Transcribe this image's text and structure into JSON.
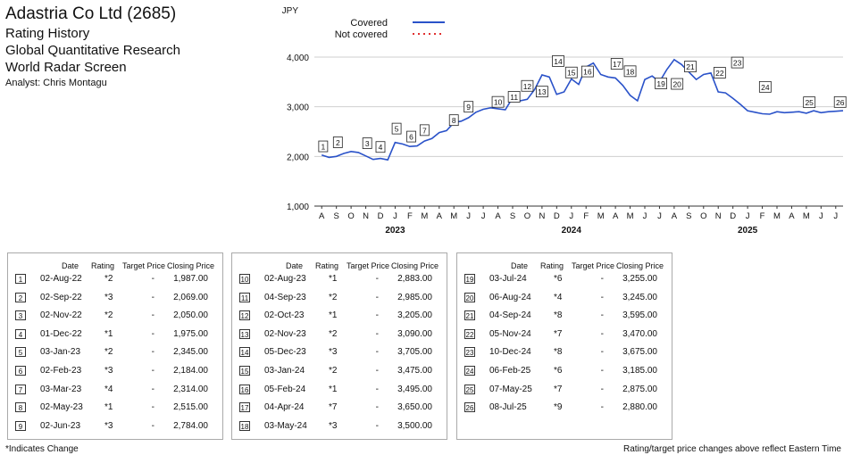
{
  "header": {
    "company": "Adastria Co Ltd (2685)",
    "line1": "Rating History",
    "line2": "Global Quantitative Research",
    "line3": "World Radar Screen",
    "analyst": "Analyst: Chris Montagu"
  },
  "chart_data": {
    "type": "line",
    "ylabel": "JPY",
    "ylim": [
      1000,
      4000
    ],
    "yticks": [
      "1,000",
      "2,000",
      "3,000",
      "4,000"
    ],
    "months": [
      "A",
      "S",
      "O",
      "N",
      "D",
      "J",
      "F",
      "M",
      "A",
      "M",
      "J",
      "J",
      "A",
      "S",
      "O",
      "N",
      "D",
      "J",
      "F",
      "M",
      "A",
      "M",
      "J",
      "J",
      "A",
      "S",
      "O",
      "N",
      "D",
      "J",
      "F",
      "M",
      "A",
      "M",
      "J",
      "J"
    ],
    "years": [
      "2023",
      "2024",
      "2025"
    ],
    "legend": [
      {
        "name": "Covered",
        "color": "#2a52c9",
        "style": "solid"
      },
      {
        "name": "Not covered",
        "color": "#e03030",
        "style": "dotted"
      }
    ],
    "series": [
      {
        "name": "Covered",
        "x": [
          0,
          0.5,
          1,
          1.5,
          2,
          2.5,
          3,
          3.5,
          4,
          4.5,
          5,
          5.5,
          6,
          6.5,
          7,
          7.5,
          8,
          8.5,
          9,
          9.5,
          10,
          10.5,
          11,
          11.5,
          12,
          12.5,
          13,
          13.5,
          14,
          14.5,
          15,
          15.5,
          16,
          16.5,
          17,
          17.5,
          18,
          18.5,
          19,
          19.5,
          20,
          20.5,
          21,
          21.5,
          22,
          22.5,
          23,
          23.5,
          24,
          24.5,
          25,
          25.5,
          26,
          26.5,
          27,
          27.5,
          28,
          28.5,
          29,
          29.5,
          30,
          30.5,
          31,
          31.5,
          32,
          32.5,
          33,
          33.5,
          34,
          34.5,
          35,
          35.5
        ],
        "y": [
          2030,
          1980,
          2000,
          2060,
          2100,
          2080,
          2010,
          1940,
          1960,
          1930,
          2280,
          2250,
          2200,
          2210,
          2310,
          2360,
          2480,
          2520,
          2680,
          2710,
          2780,
          2890,
          2950,
          2980,
          2960,
          2940,
          3180,
          3120,
          3150,
          3350,
          3640,
          3600,
          3250,
          3300,
          3560,
          3450,
          3800,
          3880,
          3650,
          3600,
          3580,
          3430,
          3230,
          3120,
          3550,
          3620,
          3500,
          3750,
          3950,
          3850,
          3700,
          3550,
          3650,
          3680,
          3300,
          3280,
          3170,
          3050,
          2920,
          2890,
          2860,
          2850,
          2900,
          2880,
          2890,
          2900,
          2870,
          2920,
          2880,
          2900,
          2910,
          2920
        ]
      }
    ],
    "markers": [
      {
        "label": "1",
        "x": 0.1,
        "y": 1987
      },
      {
        "label": "2",
        "x": 1.1,
        "y": 2069
      },
      {
        "label": "3",
        "x": 3.1,
        "y": 2050
      },
      {
        "label": "4",
        "x": 4.0,
        "y": 1975
      },
      {
        "label": "5",
        "x": 5.1,
        "y": 2345
      },
      {
        "label": "6",
        "x": 6.1,
        "y": 2184
      },
      {
        "label": "7",
        "x": 7.0,
        "y": 2314
      },
      {
        "label": "8",
        "x": 9.0,
        "y": 2515
      },
      {
        "label": "9",
        "x": 10.0,
        "y": 2784
      },
      {
        "label": "10",
        "x": 12.0,
        "y": 2883
      },
      {
        "label": "11",
        "x": 13.1,
        "y": 2985
      },
      {
        "label": "12",
        "x": 14.0,
        "y": 3205
      },
      {
        "label": "13",
        "x": 15.0,
        "y": 3090
      },
      {
        "label": "14",
        "x": 16.1,
        "y": 3705
      },
      {
        "label": "15",
        "x": 17.0,
        "y": 3475
      },
      {
        "label": "16",
        "x": 18.1,
        "y": 3495
      },
      {
        "label": "17",
        "x": 20.1,
        "y": 3650
      },
      {
        "label": "18",
        "x": 21.0,
        "y": 3500
      },
      {
        "label": "19",
        "x": 23.1,
        "y": 3255
      },
      {
        "label": "20",
        "x": 24.2,
        "y": 3245
      },
      {
        "label": "21",
        "x": 25.1,
        "y": 3595
      },
      {
        "label": "22",
        "x": 27.1,
        "y": 3470
      },
      {
        "label": "23",
        "x": 28.3,
        "y": 3675
      },
      {
        "label": "24",
        "x": 30.2,
        "y": 3185
      },
      {
        "label": "25",
        "x": 33.2,
        "y": 2875
      },
      {
        "label": "26",
        "x": 35.3,
        "y": 2880
      }
    ]
  },
  "table": {
    "headers": {
      "date": "Date",
      "rating": "Rating",
      "target": "Target Price",
      "close": "Closing Price"
    },
    "columns": [
      [
        {
          "n": "1",
          "date": "02-Aug-22",
          "rating": "*2",
          "target": "-",
          "close": "1,987.00"
        },
        {
          "n": "2",
          "date": "02-Sep-22",
          "rating": "*3",
          "target": "-",
          "close": "2,069.00"
        },
        {
          "n": "3",
          "date": "02-Nov-22",
          "rating": "*2",
          "target": "-",
          "close": "2,050.00"
        },
        {
          "n": "4",
          "date": "01-Dec-22",
          "rating": "*1",
          "target": "-",
          "close": "1,975.00"
        },
        {
          "n": "5",
          "date": "03-Jan-23",
          "rating": "*2",
          "target": "-",
          "close": "2,345.00"
        },
        {
          "n": "6",
          "date": "02-Feb-23",
          "rating": "*3",
          "target": "-",
          "close": "2,184.00"
        },
        {
          "n": "7",
          "date": "03-Mar-23",
          "rating": "*4",
          "target": "-",
          "close": "2,314.00"
        },
        {
          "n": "8",
          "date": "02-May-23",
          "rating": "*1",
          "target": "-",
          "close": "2,515.00"
        },
        {
          "n": "9",
          "date": "02-Jun-23",
          "rating": "*3",
          "target": "-",
          "close": "2,784.00"
        }
      ],
      [
        {
          "n": "10",
          "date": "02-Aug-23",
          "rating": "*1",
          "target": "-",
          "close": "2,883.00"
        },
        {
          "n": "11",
          "date": "04-Sep-23",
          "rating": "*2",
          "target": "-",
          "close": "2,985.00"
        },
        {
          "n": "12",
          "date": "02-Oct-23",
          "rating": "*1",
          "target": "-",
          "close": "3,205.00"
        },
        {
          "n": "13",
          "date": "02-Nov-23",
          "rating": "*2",
          "target": "-",
          "close": "3,090.00"
        },
        {
          "n": "14",
          "date": "05-Dec-23",
          "rating": "*3",
          "target": "-",
          "close": "3,705.00"
        },
        {
          "n": "15",
          "date": "03-Jan-24",
          "rating": "*2",
          "target": "-",
          "close": "3,475.00"
        },
        {
          "n": "16",
          "date": "05-Feb-24",
          "rating": "*1",
          "target": "-",
          "close": "3,495.00"
        },
        {
          "n": "17",
          "date": "04-Apr-24",
          "rating": "*7",
          "target": "-",
          "close": "3,650.00"
        },
        {
          "n": "18",
          "date": "03-May-24",
          "rating": "*3",
          "target": "-",
          "close": "3,500.00"
        }
      ],
      [
        {
          "n": "19",
          "date": "03-Jul-24",
          "rating": "*6",
          "target": "-",
          "close": "3,255.00"
        },
        {
          "n": "20",
          "date": "06-Aug-24",
          "rating": "*4",
          "target": "-",
          "close": "3,245.00"
        },
        {
          "n": "21",
          "date": "04-Sep-24",
          "rating": "*8",
          "target": "-",
          "close": "3,595.00"
        },
        {
          "n": "22",
          "date": "05-Nov-24",
          "rating": "*7",
          "target": "-",
          "close": "3,470.00"
        },
        {
          "n": "23",
          "date": "10-Dec-24",
          "rating": "*8",
          "target": "-",
          "close": "3,675.00"
        },
        {
          "n": "24",
          "date": "06-Feb-25",
          "rating": "*6",
          "target": "-",
          "close": "3,185.00"
        },
        {
          "n": "25",
          "date": "07-May-25",
          "rating": "*7",
          "target": "-",
          "close": "2,875.00"
        },
        {
          "n": "26",
          "date": "08-Jul-25",
          "rating": "*9",
          "target": "-",
          "close": "2,880.00"
        }
      ]
    ]
  },
  "footer": {
    "left": "*Indicates Change",
    "right": "Rating/target price changes above reflect Eastern Time"
  }
}
